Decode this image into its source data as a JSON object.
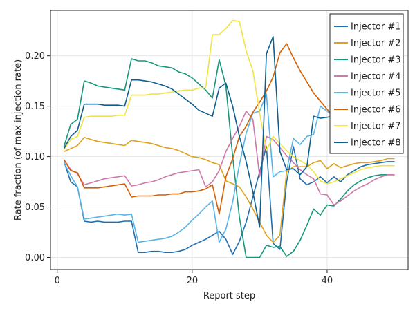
{
  "chart_data": {
    "type": "line",
    "title": "",
    "xlabel": "Report step",
    "ylabel": "Rate fraction (of max injection rate)",
    "xlim": [
      -1,
      52
    ],
    "ylim": [
      -0.012,
      0.245
    ],
    "xticks": [
      0,
      20,
      40
    ],
    "yticks": [
      0.0,
      0.05,
      0.1,
      0.15,
      0.2
    ],
    "ytick_labels": [
      "0.00",
      "0.05",
      "0.10",
      "0.15",
      "0.20"
    ],
    "grid": true,
    "legend_position": "top-right",
    "x": [
      1,
      2,
      3,
      4,
      5,
      6,
      7,
      8,
      9,
      10,
      11,
      12,
      13,
      14,
      15,
      16,
      17,
      18,
      19,
      20,
      21,
      22,
      23,
      24,
      25,
      26,
      27,
      28,
      29,
      30,
      31,
      32,
      33,
      34,
      35,
      36,
      37,
      38,
      39,
      40,
      41,
      42,
      43,
      44,
      45,
      46,
      47,
      48,
      49,
      50
    ],
    "series": [
      {
        "name": "Injector #1",
        "color": "#1f6fb0",
        "values": [
          0.095,
          0.075,
          0.07,
          0.036,
          0.035,
          0.036,
          0.035,
          0.035,
          0.035,
          0.036,
          0.036,
          0.005,
          0.005,
          0.006,
          0.006,
          0.005,
          0.005,
          0.006,
          0.008,
          0.012,
          0.015,
          0.018,
          0.022,
          0.026,
          0.018,
          0.003,
          0.016,
          0.035,
          0.06,
          0.085,
          0.11,
          0.014,
          0.008,
          0.075,
          0.11,
          0.078,
          0.072,
          0.075,
          0.08,
          0.074,
          0.08,
          0.075,
          0.082,
          0.086,
          0.09,
          0.092,
          0.093,
          0.094,
          0.095,
          0.095
        ]
      },
      {
        "name": "Injector #2",
        "color": "#e0a11a",
        "values": [
          0.105,
          0.108,
          0.111,
          0.119,
          0.117,
          0.115,
          0.114,
          0.113,
          0.112,
          0.111,
          0.116,
          0.115,
          0.114,
          0.113,
          0.111,
          0.109,
          0.108,
          0.106,
          0.103,
          0.1,
          0.099,
          0.097,
          0.094,
          0.092,
          0.076,
          0.073,
          0.07,
          0.06,
          0.048,
          0.035,
          0.022,
          0.015,
          0.022,
          0.085,
          0.09,
          0.09,
          0.09,
          0.094,
          0.096,
          0.088,
          0.093,
          0.089,
          0.091,
          0.093,
          0.094,
          0.094,
          0.095,
          0.096,
          0.098,
          0.098
        ]
      },
      {
        "name": "Injector #3",
        "color": "#14977a",
        "values": [
          0.11,
          0.132,
          0.137,
          0.175,
          0.173,
          0.17,
          0.169,
          0.168,
          0.167,
          0.166,
          0.197,
          0.195,
          0.195,
          0.193,
          0.19,
          0.189,
          0.188,
          0.184,
          0.182,
          0.178,
          0.172,
          0.166,
          0.158,
          0.196,
          0.17,
          0.1,
          0.04,
          0.0,
          0.0,
          0.0,
          0.012,
          0.01,
          0.011,
          0.001,
          0.006,
          0.017,
          0.032,
          0.048,
          0.042,
          0.052,
          0.051,
          0.058,
          0.066,
          0.072,
          0.076,
          0.079,
          0.081,
          0.082,
          0.082,
          0.082
        ]
      },
      {
        "name": "Injector #4",
        "color": "#cc79a7",
        "values": [
          0.097,
          0.087,
          0.083,
          0.072,
          0.074,
          0.076,
          0.078,
          0.079,
          0.08,
          0.081,
          0.071,
          0.072,
          0.074,
          0.075,
          0.077,
          0.08,
          0.082,
          0.084,
          0.085,
          0.086,
          0.087,
          0.07,
          0.075,
          0.086,
          0.105,
          0.118,
          0.13,
          0.145,
          0.137,
          0.08,
          0.12,
          0.117,
          0.109,
          0.101,
          0.094,
          0.087,
          0.082,
          0.078,
          0.063,
          0.062,
          0.052,
          0.056,
          0.061,
          0.066,
          0.07,
          0.073,
          0.077,
          0.08,
          0.082,
          0.082
        ]
      },
      {
        "name": "Injector #5",
        "color": "#56b4e9",
        "values": [
          0.094,
          0.081,
          0.07,
          0.038,
          0.039,
          0.04,
          0.041,
          0.042,
          0.043,
          0.042,
          0.043,
          0.015,
          0.016,
          0.017,
          0.018,
          0.019,
          0.021,
          0.025,
          0.03,
          0.037,
          0.043,
          0.05,
          0.056,
          0.015,
          0.028,
          0.055,
          0.092,
          0.123,
          0.143,
          0.145,
          0.162,
          0.08,
          0.085,
          0.086,
          0.118,
          0.112,
          0.12,
          0.122,
          0.15,
          0.145,
          0.14,
          0.142,
          0.14,
          0.145,
          0.145,
          0.147,
          0.148,
          0.148,
          0.148,
          0.148
        ]
      },
      {
        "name": "Injector #6",
        "color": "#d55e00",
        "values": [
          0.097,
          0.086,
          0.084,
          0.069,
          0.069,
          0.069,
          0.07,
          0.071,
          0.072,
          0.073,
          0.06,
          0.061,
          0.061,
          0.061,
          0.062,
          0.062,
          0.063,
          0.063,
          0.065,
          0.065,
          0.066,
          0.068,
          0.072,
          0.043,
          0.08,
          0.098,
          0.12,
          0.13,
          0.144,
          0.154,
          0.165,
          0.179,
          0.203,
          0.212,
          0.198,
          0.185,
          0.174,
          0.163,
          0.155,
          0.147,
          0.14,
          0.135,
          0.131,
          0.128,
          0.126,
          0.125,
          0.124,
          0.124,
          0.124,
          0.124
        ]
      },
      {
        "name": "Injector #7",
        "color": "#f0e442",
        "values": [
          0.107,
          0.117,
          0.12,
          0.139,
          0.14,
          0.14,
          0.14,
          0.14,
          0.141,
          0.141,
          0.161,
          0.161,
          0.161,
          0.162,
          0.162,
          0.163,
          0.164,
          0.165,
          0.166,
          0.166,
          0.168,
          0.168,
          0.221,
          0.221,
          0.227,
          0.235,
          0.234,
          0.205,
          0.185,
          0.143,
          0.106,
          0.12,
          0.113,
          0.106,
          0.1,
          0.096,
          0.092,
          0.085,
          0.076,
          0.073,
          0.075,
          0.078,
          0.081,
          0.084,
          0.087,
          0.089,
          0.09,
          0.091,
          0.091,
          0.091
        ]
      },
      {
        "name": "Injector #8",
        "color": "#0d5f91",
        "values": [
          0.108,
          0.12,
          0.126,
          0.152,
          0.152,
          0.152,
          0.151,
          0.151,
          0.151,
          0.15,
          0.176,
          0.176,
          0.175,
          0.174,
          0.172,
          0.17,
          0.167,
          0.162,
          0.157,
          0.152,
          0.146,
          0.143,
          0.14,
          0.168,
          0.173,
          0.15,
          0.12,
          0.095,
          0.065,
          0.03,
          0.202,
          0.219,
          0.105,
          0.087,
          0.088,
          0.082,
          0.09,
          0.14,
          0.138,
          0.139,
          0.14,
          0.14,
          0.14,
          0.14,
          0.14,
          0.14,
          0.14,
          0.14,
          0.14,
          0.14
        ]
      }
    ]
  }
}
